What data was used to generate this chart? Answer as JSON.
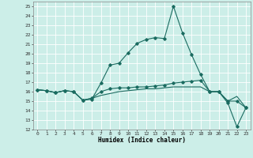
{
  "xlabel": "Humidex (Indice chaleur)",
  "bg_color": "#cceee8",
  "grid_color": "#ffffff",
  "line_color": "#1a6b60",
  "xlim": [
    -0.5,
    23.5
  ],
  "ylim": [
    12,
    25.5
  ],
  "xticks": [
    0,
    1,
    2,
    3,
    4,
    5,
    6,
    7,
    8,
    9,
    10,
    11,
    12,
    13,
    14,
    15,
    16,
    17,
    18,
    19,
    20,
    21,
    22,
    23
  ],
  "yticks": [
    12,
    13,
    14,
    15,
    16,
    17,
    18,
    19,
    20,
    21,
    22,
    23,
    24,
    25
  ],
  "line1": {
    "x": [
      0,
      1,
      2,
      3,
      4,
      5,
      6,
      7,
      8,
      9,
      10,
      11,
      12,
      13,
      14,
      15,
      16,
      17,
      18,
      19,
      20,
      21,
      22,
      23
    ],
    "y": [
      16.2,
      16.1,
      15.9,
      16.1,
      16.0,
      15.1,
      15.2,
      16.9,
      18.8,
      19.0,
      20.1,
      21.1,
      21.5,
      21.7,
      21.6,
      25.0,
      22.2,
      19.9,
      17.8,
      16.0,
      16.0,
      14.8,
      12.3,
      14.3
    ]
  },
  "line2": {
    "x": [
      0,
      1,
      2,
      3,
      4,
      5,
      6,
      7,
      8,
      9,
      10,
      11,
      12,
      13,
      14,
      15,
      16,
      17,
      18,
      19,
      20,
      21,
      22,
      23
    ],
    "y": [
      16.2,
      16.1,
      15.9,
      16.1,
      16.0,
      15.1,
      15.3,
      16.0,
      16.3,
      16.4,
      16.4,
      16.5,
      16.5,
      16.6,
      16.7,
      16.9,
      17.0,
      17.1,
      17.2,
      16.0,
      16.0,
      15.0,
      15.0,
      14.3
    ]
  },
  "line3": {
    "x": [
      0,
      1,
      2,
      3,
      4,
      5,
      6,
      7,
      8,
      9,
      10,
      11,
      12,
      13,
      14,
      15,
      16,
      17,
      18,
      19,
      20,
      21,
      22,
      23
    ],
    "y": [
      16.2,
      16.1,
      15.9,
      16.1,
      16.0,
      15.1,
      15.3,
      15.6,
      15.8,
      16.0,
      16.1,
      16.2,
      16.3,
      16.3,
      16.4,
      16.5,
      16.5,
      16.5,
      16.5,
      16.0,
      16.0,
      15.0,
      15.5,
      14.3
    ]
  }
}
